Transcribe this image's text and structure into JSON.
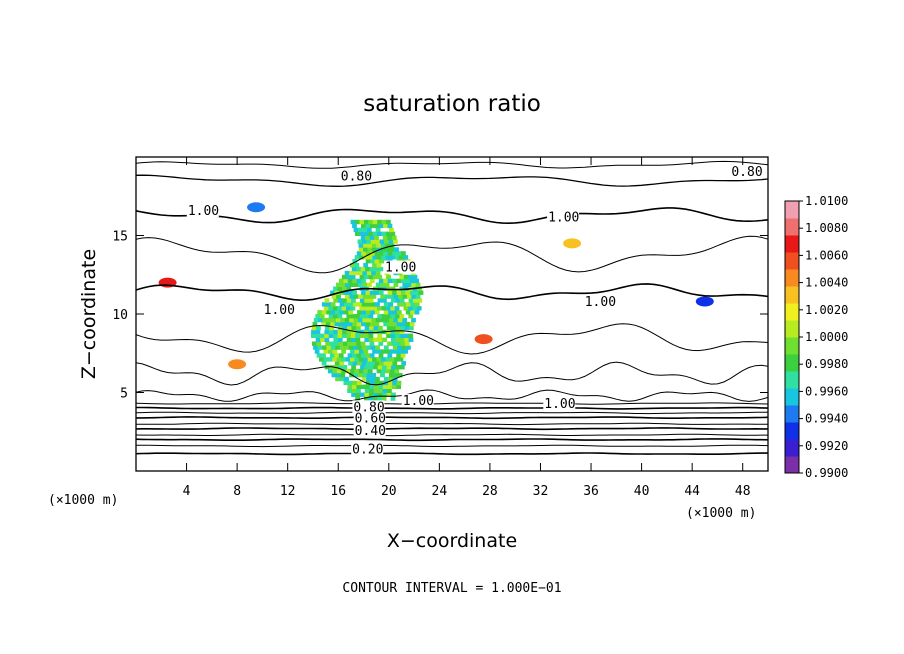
{
  "chart_data": {
    "type": "heatmap",
    "title": "saturation ratio",
    "xlabel": "X−coordinate",
    "ylabel": "Z−coordinate",
    "x_unit": "(×1000 m)",
    "y_unit": "(×1000 m)",
    "xlim": [
      0,
      50
    ],
    "ylim": [
      0,
      20
    ],
    "x_ticks": [
      4,
      8,
      12,
      16,
      20,
      24,
      28,
      32,
      36,
      40,
      44,
      48
    ],
    "y_ticks": [
      5,
      10,
      15
    ],
    "colorbar": {
      "min": 0.99,
      "max": 1.01,
      "labels": [
        "1.0100",
        "1.0080",
        "1.0060",
        "1.0040",
        "1.0020",
        "1.0000",
        "0.9980",
        "0.9960",
        "0.9940",
        "0.9920",
        "0.9900"
      ],
      "colors": [
        "#7a2fa8",
        "#3a1fd0",
        "#1030e8",
        "#1e7af0",
        "#19c6e0",
        "#30e0a0",
        "#3cd040",
        "#6fe030",
        "#b8ec20",
        "#f0f020",
        "#f8c020",
        "#f88a20",
        "#f05020",
        "#e81818",
        "#f07070",
        "#f0a0b0"
      ]
    },
    "contour_interval": 0.1,
    "contour_labels": [
      {
        "text": "0.80",
        "x": 16.2,
        "z": 18.5
      },
      {
        "text": "0.80",
        "x": 47.1,
        "z": 18.8
      },
      {
        "text": "1.00",
        "x": 4.1,
        "z": 16.3
      },
      {
        "text": "1.00",
        "x": 32.6,
        "z": 15.9
      },
      {
        "text": "1.00",
        "x": 19.7,
        "z": 12.7
      },
      {
        "text": "1.00",
        "x": 10.1,
        "z": 10.0
      },
      {
        "text": "1.00",
        "x": 35.5,
        "z": 10.5
      },
      {
        "text": "1.00",
        "x": 21.1,
        "z": 4.2
      },
      {
        "text": "1.00",
        "x": 32.3,
        "z": 4.0
      },
      {
        "text": "0.80",
        "x": 17.2,
        "z": 3.8
      },
      {
        "text": "0.60",
        "x": 17.3,
        "z": 3.1
      },
      {
        "text": "0.40",
        "x": 17.3,
        "z": 2.3
      },
      {
        "text": "0.20",
        "x": 17.1,
        "z": 1.1
      }
    ],
    "cloud_region": {
      "x_min": 15,
      "x_max": 23,
      "z_min": 4.5,
      "z_max": 16,
      "value_range": [
        0.996,
        1.002
      ]
    },
    "footer": "CONTOUR INTERVAL = 1.000E−01"
  }
}
